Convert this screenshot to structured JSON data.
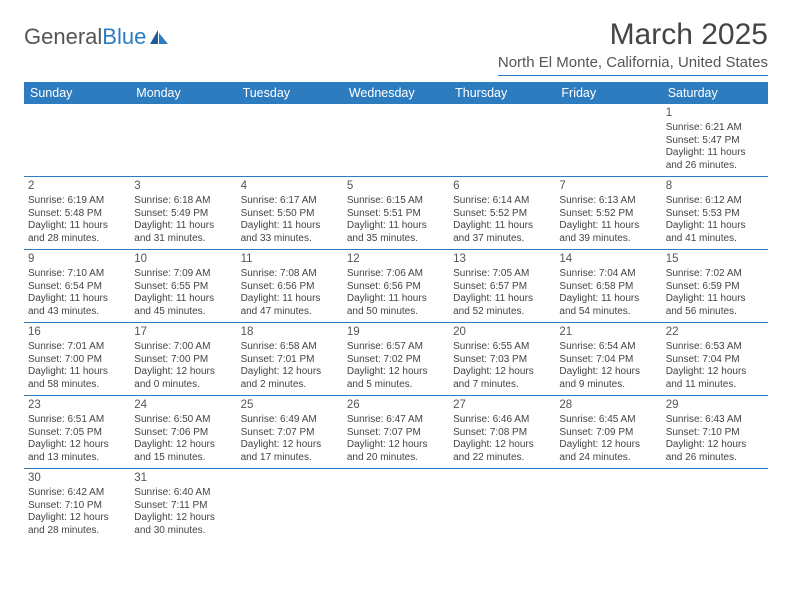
{
  "logo": {
    "text1": "General",
    "text2": "Blue"
  },
  "title": "March 2025",
  "location": "North El Monte, California, United States",
  "colors": {
    "accent": "#2e7cc0",
    "headerText": "#ffffff",
    "bodyText": "#444444",
    "background": "#ffffff"
  },
  "daysOfWeek": [
    "Sunday",
    "Monday",
    "Tuesday",
    "Wednesday",
    "Thursday",
    "Friday",
    "Saturday"
  ],
  "layout": {
    "startOffset": 6,
    "numDays": 31
  },
  "cells": {
    "1": {
      "sunrise": "Sunrise: 6:21 AM",
      "sunset": "Sunset: 5:47 PM",
      "day1": "Daylight: 11 hours",
      "day2": "and 26 minutes."
    },
    "2": {
      "sunrise": "Sunrise: 6:19 AM",
      "sunset": "Sunset: 5:48 PM",
      "day1": "Daylight: 11 hours",
      "day2": "and 28 minutes."
    },
    "3": {
      "sunrise": "Sunrise: 6:18 AM",
      "sunset": "Sunset: 5:49 PM",
      "day1": "Daylight: 11 hours",
      "day2": "and 31 minutes."
    },
    "4": {
      "sunrise": "Sunrise: 6:17 AM",
      "sunset": "Sunset: 5:50 PM",
      "day1": "Daylight: 11 hours",
      "day2": "and 33 minutes."
    },
    "5": {
      "sunrise": "Sunrise: 6:15 AM",
      "sunset": "Sunset: 5:51 PM",
      "day1": "Daylight: 11 hours",
      "day2": "and 35 minutes."
    },
    "6": {
      "sunrise": "Sunrise: 6:14 AM",
      "sunset": "Sunset: 5:52 PM",
      "day1": "Daylight: 11 hours",
      "day2": "and 37 minutes."
    },
    "7": {
      "sunrise": "Sunrise: 6:13 AM",
      "sunset": "Sunset: 5:52 PM",
      "day1": "Daylight: 11 hours",
      "day2": "and 39 minutes."
    },
    "8": {
      "sunrise": "Sunrise: 6:12 AM",
      "sunset": "Sunset: 5:53 PM",
      "day1": "Daylight: 11 hours",
      "day2": "and 41 minutes."
    },
    "9": {
      "sunrise": "Sunrise: 7:10 AM",
      "sunset": "Sunset: 6:54 PM",
      "day1": "Daylight: 11 hours",
      "day2": "and 43 minutes."
    },
    "10": {
      "sunrise": "Sunrise: 7:09 AM",
      "sunset": "Sunset: 6:55 PM",
      "day1": "Daylight: 11 hours",
      "day2": "and 45 minutes."
    },
    "11": {
      "sunrise": "Sunrise: 7:08 AM",
      "sunset": "Sunset: 6:56 PM",
      "day1": "Daylight: 11 hours",
      "day2": "and 47 minutes."
    },
    "12": {
      "sunrise": "Sunrise: 7:06 AM",
      "sunset": "Sunset: 6:56 PM",
      "day1": "Daylight: 11 hours",
      "day2": "and 50 minutes."
    },
    "13": {
      "sunrise": "Sunrise: 7:05 AM",
      "sunset": "Sunset: 6:57 PM",
      "day1": "Daylight: 11 hours",
      "day2": "and 52 minutes."
    },
    "14": {
      "sunrise": "Sunrise: 7:04 AM",
      "sunset": "Sunset: 6:58 PM",
      "day1": "Daylight: 11 hours",
      "day2": "and 54 minutes."
    },
    "15": {
      "sunrise": "Sunrise: 7:02 AM",
      "sunset": "Sunset: 6:59 PM",
      "day1": "Daylight: 11 hours",
      "day2": "and 56 minutes."
    },
    "16": {
      "sunrise": "Sunrise: 7:01 AM",
      "sunset": "Sunset: 7:00 PM",
      "day1": "Daylight: 11 hours",
      "day2": "and 58 minutes."
    },
    "17": {
      "sunrise": "Sunrise: 7:00 AM",
      "sunset": "Sunset: 7:00 PM",
      "day1": "Daylight: 12 hours",
      "day2": "and 0 minutes."
    },
    "18": {
      "sunrise": "Sunrise: 6:58 AM",
      "sunset": "Sunset: 7:01 PM",
      "day1": "Daylight: 12 hours",
      "day2": "and 2 minutes."
    },
    "19": {
      "sunrise": "Sunrise: 6:57 AM",
      "sunset": "Sunset: 7:02 PM",
      "day1": "Daylight: 12 hours",
      "day2": "and 5 minutes."
    },
    "20": {
      "sunrise": "Sunrise: 6:55 AM",
      "sunset": "Sunset: 7:03 PM",
      "day1": "Daylight: 12 hours",
      "day2": "and 7 minutes."
    },
    "21": {
      "sunrise": "Sunrise: 6:54 AM",
      "sunset": "Sunset: 7:04 PM",
      "day1": "Daylight: 12 hours",
      "day2": "and 9 minutes."
    },
    "22": {
      "sunrise": "Sunrise: 6:53 AM",
      "sunset": "Sunset: 7:04 PM",
      "day1": "Daylight: 12 hours",
      "day2": "and 11 minutes."
    },
    "23": {
      "sunrise": "Sunrise: 6:51 AM",
      "sunset": "Sunset: 7:05 PM",
      "day1": "Daylight: 12 hours",
      "day2": "and 13 minutes."
    },
    "24": {
      "sunrise": "Sunrise: 6:50 AM",
      "sunset": "Sunset: 7:06 PM",
      "day1": "Daylight: 12 hours",
      "day2": "and 15 minutes."
    },
    "25": {
      "sunrise": "Sunrise: 6:49 AM",
      "sunset": "Sunset: 7:07 PM",
      "day1": "Daylight: 12 hours",
      "day2": "and 17 minutes."
    },
    "26": {
      "sunrise": "Sunrise: 6:47 AM",
      "sunset": "Sunset: 7:07 PM",
      "day1": "Daylight: 12 hours",
      "day2": "and 20 minutes."
    },
    "27": {
      "sunrise": "Sunrise: 6:46 AM",
      "sunset": "Sunset: 7:08 PM",
      "day1": "Daylight: 12 hours",
      "day2": "and 22 minutes."
    },
    "28": {
      "sunrise": "Sunrise: 6:45 AM",
      "sunset": "Sunset: 7:09 PM",
      "day1": "Daylight: 12 hours",
      "day2": "and 24 minutes."
    },
    "29": {
      "sunrise": "Sunrise: 6:43 AM",
      "sunset": "Sunset: 7:10 PM",
      "day1": "Daylight: 12 hours",
      "day2": "and 26 minutes."
    },
    "30": {
      "sunrise": "Sunrise: 6:42 AM",
      "sunset": "Sunset: 7:10 PM",
      "day1": "Daylight: 12 hours",
      "day2": "and 28 minutes."
    },
    "31": {
      "sunrise": "Sunrise: 6:40 AM",
      "sunset": "Sunset: 7:11 PM",
      "day1": "Daylight: 12 hours",
      "day2": "and 30 minutes."
    }
  }
}
